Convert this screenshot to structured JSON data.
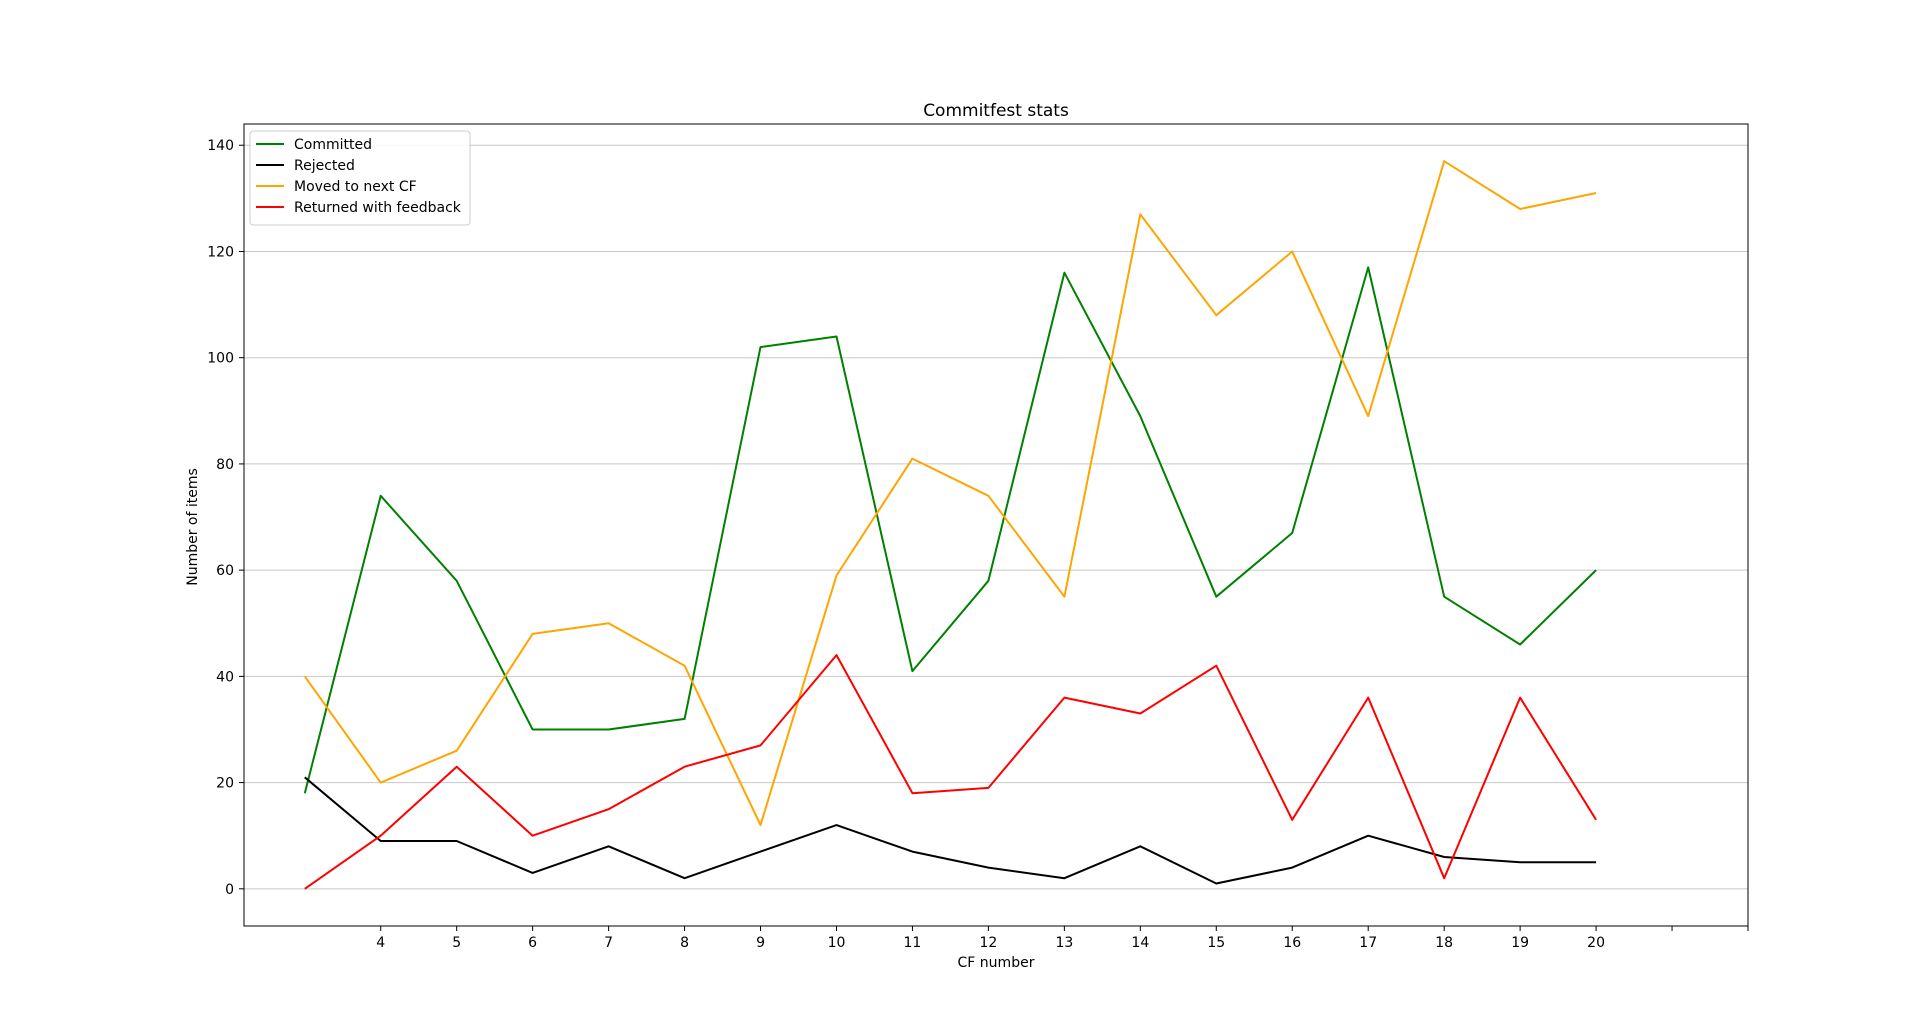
{
  "chart_data": {
    "type": "line",
    "title": "Commitfest stats",
    "xlabel": "CF number",
    "ylabel": "Number of items",
    "x": [
      3,
      4,
      5,
      6,
      7,
      8,
      9,
      10,
      11,
      12,
      13,
      14,
      15,
      16,
      17,
      18,
      19,
      20
    ],
    "xticks": [
      4,
      5,
      6,
      7,
      8,
      9,
      10,
      11,
      12,
      13,
      14,
      15,
      16,
      17,
      18,
      19,
      20
    ],
    "xlim": [
      2.2,
      22.0
    ],
    "ylim": [
      -7,
      144
    ],
    "yticks": [
      0,
      20,
      40,
      60,
      80,
      100,
      120,
      140
    ],
    "grid": "horizontal",
    "legend_position": "top-left",
    "series": [
      {
        "name": "Committed",
        "color": "#008000",
        "values": [
          18,
          74,
          58,
          30,
          30,
          32,
          102,
          104,
          41,
          58,
          116,
          89,
          55,
          67,
          117,
          55,
          46,
          60
        ]
      },
      {
        "name": "Rejected",
        "color": "#000000",
        "values": [
          21,
          9,
          9,
          3,
          8,
          2,
          7,
          12,
          7,
          4,
          2,
          8,
          1,
          4,
          10,
          6,
          5,
          5
        ]
      },
      {
        "name": "Moved to next CF",
        "color": "#FFA500",
        "values": [
          40,
          20,
          26,
          48,
          50,
          42,
          12,
          59,
          81,
          74,
          55,
          127,
          108,
          120,
          89,
          137,
          128,
          131
        ]
      },
      {
        "name": "Returned with feedback",
        "color": "#FF0000",
        "values": [
          0,
          10,
          23,
          10,
          15,
          23,
          27,
          44,
          18,
          19,
          36,
          33,
          42,
          13,
          36,
          2,
          36,
          13
        ]
      }
    ]
  }
}
